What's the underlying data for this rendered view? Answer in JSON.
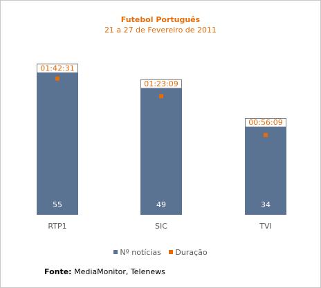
{
  "chart_data": {
    "type": "bar",
    "title": "Futebol Português",
    "subtitle": "21 a 27 de Fevereiro de 2011",
    "categories": [
      "RTP1",
      "SIC",
      "TVI"
    ],
    "series": [
      {
        "name": "Nº notícias",
        "type": "bar",
        "values": [
          55,
          49,
          34
        ],
        "color": "#5a7393"
      },
      {
        "name": "Duração",
        "type": "point",
        "values": [
          "01:42:31",
          "01:23:09",
          "00:56:09"
        ],
        "color": "#e46c0a"
      }
    ],
    "ylim": [
      0,
      60
    ],
    "legend": "bottom",
    "grid": false
  },
  "source": {
    "label": "Fonte:",
    "text": "MediaMonitor, Telenews"
  }
}
